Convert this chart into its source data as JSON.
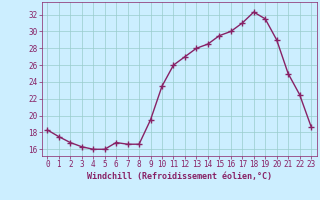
{
  "x": [
    0,
    1,
    2,
    3,
    4,
    5,
    6,
    7,
    8,
    9,
    10,
    11,
    12,
    13,
    14,
    15,
    16,
    17,
    18,
    19,
    20,
    21,
    22,
    23
  ],
  "y": [
    18.3,
    17.5,
    16.8,
    16.3,
    16.0,
    16.0,
    16.8,
    16.6,
    16.6,
    19.5,
    23.5,
    26.0,
    27.0,
    28.0,
    28.5,
    29.5,
    30.0,
    31.0,
    32.3,
    31.5,
    29.0,
    25.0,
    22.5,
    18.7
  ],
  "line_color": "#882266",
  "marker": "+",
  "marker_size": 4,
  "marker_linewidth": 1.0,
  "linewidth": 1.0,
  "background_color": "#cceeff",
  "grid_color": "#99cccc",
  "xlabel": "Windchill (Refroidissement éolien,°C)",
  "yticks": [
    16,
    18,
    20,
    22,
    24,
    26,
    28,
    30,
    32
  ],
  "ylim": [
    15.2,
    33.5
  ],
  "xlim": [
    -0.5,
    23.5
  ],
  "tick_color": "#882266",
  "label_color": "#882266",
  "tick_fontsize": 5.5,
  "xlabel_fontsize": 6.0
}
